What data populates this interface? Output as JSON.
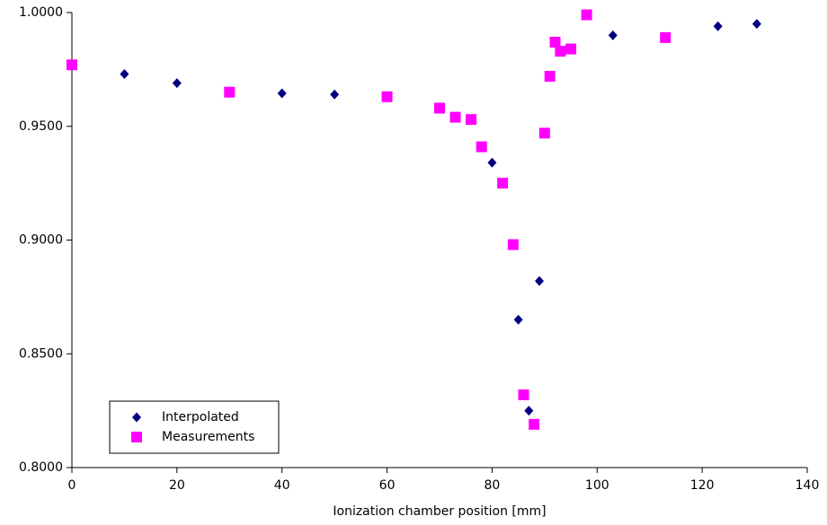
{
  "chart_data": {
    "type": "scatter",
    "x_label": "Ionization chamber position [mm]",
    "xlim": [
      0,
      140
    ],
    "xticks": [
      0,
      20,
      40,
      60,
      80,
      100,
      120,
      140
    ],
    "ylim": [
      0.8,
      1.0
    ],
    "yticks": [
      {
        "value": 0.8,
        "label": "0.8000"
      },
      {
        "value": 0.85,
        "label": "0.8500"
      },
      {
        "value": 0.9,
        "label": "0.9000"
      },
      {
        "value": 0.95,
        "label": "0.9500"
      },
      {
        "value": 1.0,
        "label": "1.0000"
      }
    ],
    "legend": "lower left",
    "series": [
      {
        "name": "Interpolated",
        "color": "#000080",
        "marker": "diamond",
        "x": [
          10,
          20,
          40,
          50,
          80,
          85,
          87,
          89,
          103,
          123,
          130.4
        ],
        "values": [
          0.973,
          0.969,
          0.9645,
          0.964,
          0.934,
          0.865,
          0.825,
          0.882,
          0.99,
          0.994,
          0.995
        ]
      },
      {
        "name": "Measurements",
        "color": "#ff00ff",
        "marker": "square",
        "x": [
          0,
          30,
          60,
          70,
          73,
          76,
          78,
          82,
          84,
          86,
          88,
          90,
          91,
          92,
          93,
          95,
          98,
          113
        ],
        "values": [
          0.977,
          0.965,
          0.963,
          0.958,
          0.954,
          0.953,
          0.941,
          0.925,
          0.898,
          0.832,
          0.819,
          0.947,
          0.972,
          0.987,
          0.983,
          0.984,
          0.999,
          0.989
        ]
      }
    ]
  }
}
